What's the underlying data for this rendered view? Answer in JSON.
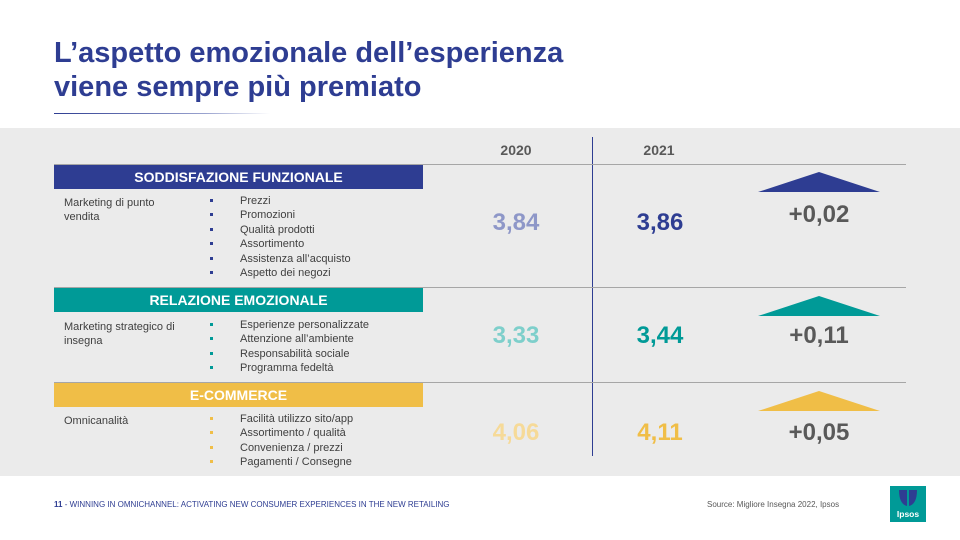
{
  "title": {
    "line1": "L’aspetto emozionale dell’esperienza",
    "line2": "viene sempre più premiato"
  },
  "years": [
    "2020",
    "2021"
  ],
  "colors": {
    "navy": "#2e3d92",
    "navy_light": "#8e97c8",
    "teal": "#009a97",
    "teal_light": "#7ecfcb",
    "yellow": "#f0be47",
    "yellow_light": "#f6da98",
    "gray_text": "#595959"
  },
  "sections": [
    {
      "header": "SODDISFAZIONE FUNZIONALE",
      "label": "Marketing di punto vendita",
      "bullets": [
        "Prezzi",
        "Promozioni",
        "Qualità prodotti",
        "Assortimento",
        "Assistenza all’acquisto",
        "Aspetto dei negozi"
      ],
      "value_2020": "3,84",
      "value_2021": "3,86",
      "delta": "+0,02",
      "trend_icon": "up-triangle-icon"
    },
    {
      "header": "RELAZIONE EMOZIONALE",
      "label": "Marketing strategico di insegna",
      "bullets": [
        "Esperienze personalizzate",
        "Attenzione all’ambiente",
        "Responsabilità sociale",
        "Programma fedeltà"
      ],
      "value_2020": "3,33",
      "value_2021": "3,44",
      "delta": "+0,11",
      "trend_icon": "up-triangle-icon"
    },
    {
      "header": "E-COMMERCE",
      "label": "Omnicanalità",
      "bullets": [
        "Facilità utilizzo sito/app",
        "Assortimento / qualità",
        "Convenienza / prezzi",
        "Pagamenti / Consegne"
      ],
      "value_2020": "4,06",
      "value_2021": "4,11",
      "delta": "+0,05",
      "trend_icon": "up-triangle-icon"
    }
  ],
  "footer": {
    "page_number": "11",
    "separator": "-",
    "deck_title": "WINNING IN OMNICHANNEL: ACTIVATING NEW CONSUMER EXPERIENCES IN THE NEW RETAILING",
    "source": "Source: Migliore Insegna 2022, Ipsos",
    "logo_text": "Ipsos"
  }
}
